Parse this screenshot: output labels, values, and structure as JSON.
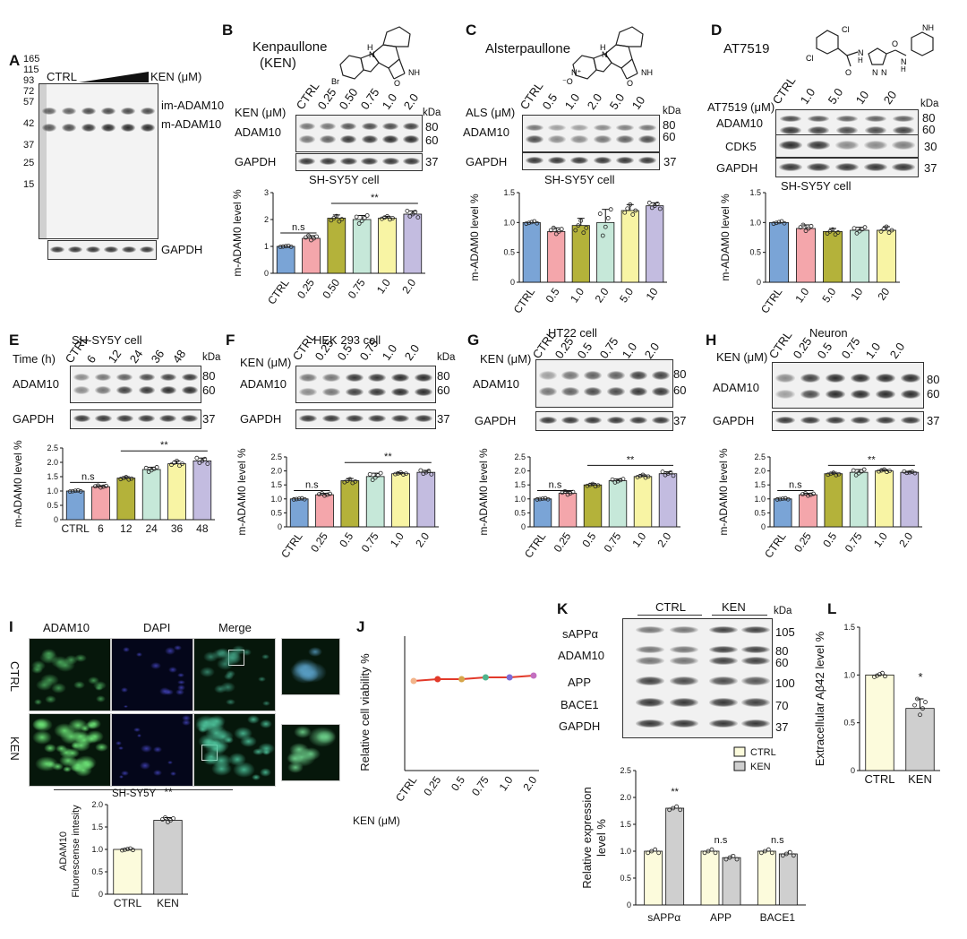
{
  "panels": {
    "A": "A",
    "B": "B",
    "C": "C",
    "D": "D",
    "E": "E",
    "F": "F",
    "G": "G",
    "H": "H",
    "I": "I",
    "J": "J",
    "K": "K",
    "L": "L"
  },
  "colors": {
    "blue": "#7aa4d6",
    "pink": "#f4a6ab",
    "olive": "#b4b23a",
    "mint": "#c6e8d9",
    "yellow": "#f8f4a4",
    "lavender": "#c3bce0",
    "lightyellow": "#fcfbdc",
    "gray": "#cfcfcf",
    "red": "#e23a2a"
  },
  "text": {
    "A": {
      "ctrl": "CTRL",
      "ken": "KEN (μM)",
      "im": "im-ADAM10",
      "m": "m-ADAM10",
      "gapdh": "GAPDH",
      "ladder": [
        "165",
        "115",
        "93",
        "72",
        "57",
        "42",
        "37",
        "25",
        "15"
      ]
    },
    "B": {
      "name": "Kenpaullone",
      "abbr": "(KEN)",
      "row_label": "KEN (μM)",
      "lanes": [
        "CTRL",
        "0.25",
        "0.50",
        "0.75",
        "1.0",
        "2.0"
      ],
      "kda": "kDa",
      "prot": "ADAM10",
      "gapdh": "GAPDH",
      "k1": "80",
      "k2": "60",
      "k3": "37",
      "cell": "SH-SY5Y cell",
      "sig_ns": "n.s",
      "sig": "**"
    },
    "C": {
      "name": "Alsterpaullone",
      "row_label": "ALS (μM)",
      "lanes": [
        "CTRL",
        "0.5",
        "1.0",
        "2.0",
        "5.0",
        "10"
      ],
      "kda": "kDa",
      "prot": "ADAM10",
      "gapdh": "GAPDH",
      "k1": "80",
      "k2": "60",
      "k3": "37",
      "cell": "SH-SY5Y cell"
    },
    "D": {
      "name": "AT7519",
      "row_label": "AT7519 (μM)",
      "lanes": [
        "CTRL",
        "1.0",
        "5.0",
        "10",
        "20"
      ],
      "kda": "kDa",
      "prot": "ADAM10",
      "cdk5": "CDK5",
      "gapdh": "GAPDH",
      "k1": "80",
      "k2": "60",
      "k30": "30",
      "k3": "37",
      "cell": "SH-SY5Y cell"
    },
    "E": {
      "title": "SH-SY5Y   cell",
      "row_label": "Time (h)",
      "lanes": [
        "CTRL",
        "6",
        "12",
        "24",
        "36",
        "48"
      ],
      "kda": "kDa",
      "prot": "ADAM10",
      "gapdh": "GAPDH",
      "k1": "80",
      "k2": "60",
      "k3": "37",
      "sig_ns": "n.s",
      "sig": "**"
    },
    "F": {
      "title": "HEK 293  cell",
      "row_label": "KEN (μM)",
      "lanes": [
        "CTRL",
        "0.25",
        "0.5",
        "0.75",
        "1.0",
        "2.0"
      ],
      "kda": "kDa",
      "prot": "ADAM10",
      "gapdh": "GAPDH",
      "k1": "80",
      "k2": "60",
      "k3": "37",
      "sig_ns": "n.s",
      "sig": "**"
    },
    "G": {
      "title": "HT22    cell",
      "row_label": "KEN (μM)",
      "lanes": [
        "CTRL",
        "0.25",
        "0.5",
        "0.75",
        "1.0",
        "2.0"
      ],
      "prot": "ADAM10",
      "gapdh": "GAPDH",
      "k1": "80",
      "k2": "60",
      "k3": "37",
      "sig_ns": "n.s",
      "sig": "**"
    },
    "H": {
      "title": "Neuron",
      "row_label": "KEN (μM)",
      "lanes": [
        "CTRL",
        "0.25",
        "0.5",
        "0.75",
        "1.0",
        "2.0"
      ],
      "prot": "ADAM10",
      "gapdh": "GAPDH",
      "k1": "80",
      "k2": "60",
      "k3": "37",
      "sig_ns": "n.s",
      "sig": "**"
    },
    "I": {
      "cols": [
        "ADAM10",
        "DAPI",
        "Merge"
      ],
      "rows": [
        "CTRL",
        "KEN"
      ],
      "cell": "SH-SY5Y",
      "ylabel1": "ADAM10",
      "ylabel2": "Fluorescense  intesity",
      "sig": "**"
    },
    "J": {
      "ylabel": "Relative  cell  viability  %",
      "xprefix": "KEN (μM)"
    },
    "K": {
      "ctrl": "CTRL",
      "ken": "KEN",
      "kda": "kDa",
      "rows": [
        "sAPPα",
        "ADAM10",
        "APP",
        "BACE1",
        "GAPDH"
      ],
      "kdas": [
        "105",
        "80",
        "60",
        "100",
        "70",
        "37"
      ],
      "ylabel1": "Relative expression",
      "ylabel2": "level %",
      "sig": "**",
      "ns": "n.s"
    },
    "L": {
      "ylabel": "Extracellular Aβ42  level  %",
      "sig": "*"
    },
    "ylabel_m": "m-ADAM0  level %"
  },
  "chart_data": [
    {
      "id": "B",
      "type": "bar",
      "categories": [
        "CTRL",
        "0.25",
        "0.50",
        "0.75",
        "1.0",
        "2.0"
      ],
      "values": [
        1.0,
        1.3,
        2.05,
        2.0,
        2.05,
        2.2
      ],
      "errors": [
        0,
        0.1,
        0.12,
        0.15,
        0.07,
        0.12
      ],
      "ylim": [
        0,
        3
      ],
      "yticks": [
        0,
        1,
        2,
        3
      ],
      "ylabel": "m-ADAM0  level %",
      "colors": [
        "#7aa4d6",
        "#f4a6ab",
        "#b4b23a",
        "#c6e8d9",
        "#f8f4a4",
        "#c3bce0"
      ]
    },
    {
      "id": "C",
      "type": "bar",
      "categories": [
        "CTRL",
        "0.5",
        "1.0",
        "2.0",
        "5.0",
        "10"
      ],
      "values": [
        1.0,
        0.85,
        0.95,
        1.0,
        1.2,
        1.28
      ],
      "errors": [
        0,
        0.06,
        0.12,
        0.22,
        0.1,
        0.05
      ],
      "ylim": [
        0,
        1.5
      ],
      "yticks": [
        0,
        0.5,
        1.0,
        1.5
      ],
      "ylabel": "m-ADAM0  level %",
      "colors": [
        "#7aa4d6",
        "#f4a6ab",
        "#b4b23a",
        "#c6e8d9",
        "#f8f4a4",
        "#c3bce0"
      ]
    },
    {
      "id": "D",
      "type": "bar",
      "categories": [
        "CTRL",
        "1.0",
        "5.0",
        "10",
        "20"
      ],
      "values": [
        1.0,
        0.9,
        0.85,
        0.87,
        0.87
      ],
      "errors": [
        0,
        0.06,
        0.05,
        0.05,
        0.06
      ],
      "ylim": [
        0,
        1.5
      ],
      "yticks": [
        0,
        0.5,
        1.0,
        1.5
      ],
      "ylabel": "m-ADAM0  level %",
      "colors": [
        "#7aa4d6",
        "#f4a6ab",
        "#b4b23a",
        "#c6e8d9",
        "#f8f4a4"
      ]
    },
    {
      "id": "E",
      "type": "bar",
      "categories": [
        "CTRL",
        "6",
        "12",
        "24",
        "36",
        "48"
      ],
      "values": [
        1.0,
        1.15,
        1.45,
        1.75,
        1.95,
        2.05
      ],
      "errors": [
        0,
        0.04,
        0.05,
        0.08,
        0.1,
        0.1
      ],
      "ylim": [
        0,
        2.5
      ],
      "yticks": [
        0,
        0.5,
        1.0,
        1.5,
        2.0,
        2.5
      ],
      "ylabel": "m-ADAM0  level %",
      "colors": [
        "#7aa4d6",
        "#f4a6ab",
        "#b4b23a",
        "#c6e8d9",
        "#f8f4a4",
        "#c3bce0"
      ]
    },
    {
      "id": "F",
      "type": "bar",
      "categories": [
        "CTRL",
        "0.25",
        "0.5",
        "0.75",
        "1.0",
        "2.0"
      ],
      "values": [
        1.0,
        1.15,
        1.65,
        1.8,
        1.9,
        1.95
      ],
      "errors": [
        0,
        0.05,
        0.08,
        0.12,
        0.04,
        0.07
      ],
      "ylim": [
        0,
        2.5
      ],
      "yticks": [
        0,
        0.5,
        1.0,
        1.5,
        2.0,
        2.5
      ],
      "ylabel": "m-ADAM0  level %",
      "colors": [
        "#7aa4d6",
        "#f4a6ab",
        "#b4b23a",
        "#c6e8d9",
        "#f8f4a4",
        "#c3bce0"
      ]
    },
    {
      "id": "G",
      "type": "bar",
      "categories": [
        "CTRL",
        "0.25",
        "0.5",
        "0.75",
        "1.0",
        "2.0"
      ],
      "values": [
        1.0,
        1.2,
        1.5,
        1.65,
        1.8,
        1.9
      ],
      "errors": [
        0,
        0.07,
        0.05,
        0.06,
        0.06,
        0.07
      ],
      "ylim": [
        0,
        2.5
      ],
      "yticks": [
        0,
        0.5,
        1.0,
        1.5,
        2.0,
        2.5
      ],
      "ylabel": "m-ADAM0  level %",
      "colors": [
        "#7aa4d6",
        "#f4a6ab",
        "#b4b23a",
        "#c6e8d9",
        "#f8f4a4",
        "#c3bce0"
      ]
    },
    {
      "id": "H",
      "type": "bar",
      "categories": [
        "CTRL",
        "0.25",
        "0.5",
        "0.75",
        "1.0",
        "2.0"
      ],
      "values": [
        1.0,
        1.15,
        1.9,
        1.95,
        2.0,
        1.95
      ],
      "errors": [
        0,
        0.05,
        0.05,
        0.1,
        0.05,
        0.03
      ],
      "ylim": [
        0,
        2.5
      ],
      "yticks": [
        0,
        0.5,
        1.0,
        1.5,
        2.0,
        2.5
      ],
      "ylabel": "m-ADAM0  level %",
      "colors": [
        "#7aa4d6",
        "#f4a6ab",
        "#b4b23a",
        "#c6e8d9",
        "#f8f4a4",
        "#c3bce0"
      ]
    },
    {
      "id": "I",
      "type": "bar",
      "categories": [
        "CTRL",
        "KEN"
      ],
      "values": [
        1.0,
        1.65
      ],
      "errors": [
        0,
        0.06
      ],
      "ylim": [
        0,
        2.0
      ],
      "yticks": [
        0,
        0.5,
        1.0,
        1.5,
        2.0
      ],
      "colors": [
        "#fcfbdc",
        "#cfcfcf"
      ]
    },
    {
      "id": "J",
      "type": "line",
      "categories": [
        "CTRL",
        "0.25",
        "0.5",
        "0.75",
        "1.0",
        "2.0"
      ],
      "values": [
        1.0,
        1.02,
        1.02,
        1.04,
        1.04,
        1.06
      ],
      "ylim": [
        0,
        1.5
      ],
      "ylabel": "Relative  cell  viability  %",
      "color": "#e23a2a"
    },
    {
      "id": "K",
      "type": "bar",
      "categories": [
        "sAPPα",
        "APP",
        "BACE1"
      ],
      "series": [
        {
          "name": "CTRL",
          "values": [
            1.0,
            1.0,
            1.0
          ]
        },
        {
          "name": "KEN",
          "values": [
            1.8,
            0.88,
            0.95
          ]
        }
      ],
      "errors": [
        [
          0,
          0
        ],
        [
          0,
          0.06
        ],
        [
          0,
          0.06
        ]
      ],
      "ylim": [
        0,
        2.5
      ],
      "yticks": [
        0,
        0.5,
        1.0,
        1.5,
        2.0,
        2.5
      ],
      "colors": [
        "#fcfbdc",
        "#cfcfcf"
      ]
    },
    {
      "id": "L",
      "type": "bar",
      "categories": [
        "CTRL",
        "KEN"
      ],
      "values": [
        1.0,
        0.65
      ],
      "errors": [
        0,
        0.1
      ],
      "ylim": [
        0,
        1.5
      ],
      "yticks": [
        0,
        0.5,
        1.0,
        1.5
      ],
      "colors": [
        "#fcfbdc",
        "#cfcfcf"
      ]
    }
  ]
}
